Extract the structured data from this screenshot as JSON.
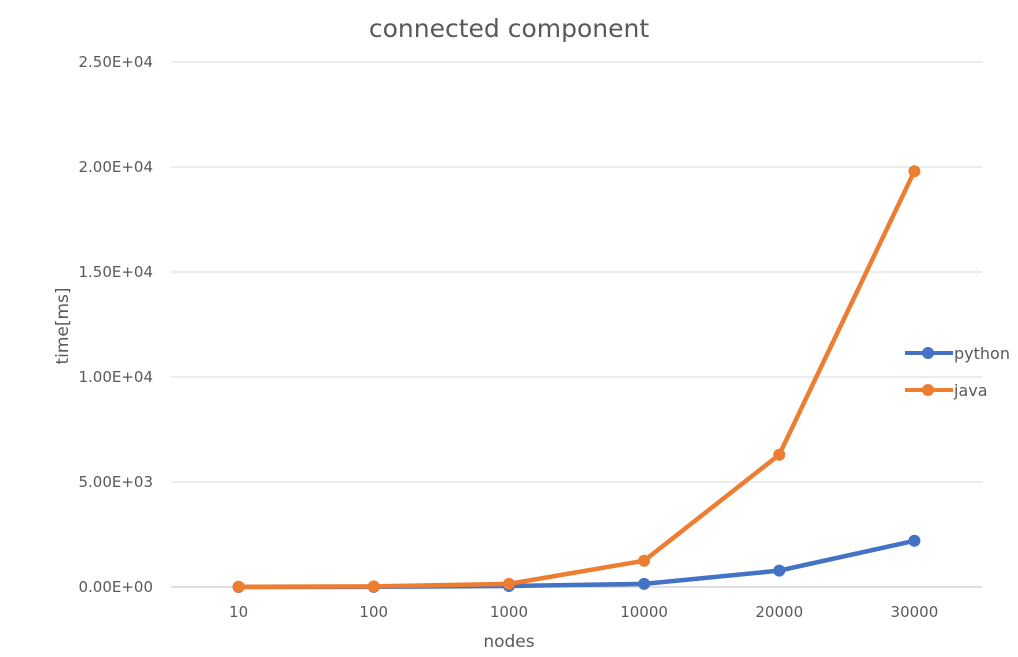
{
  "chart_data": {
    "type": "line",
    "title": "connected component",
    "xlabel": "nodes",
    "ylabel": "time[ms]",
    "categories": [
      "10",
      "100",
      "1000",
      "10000",
      "20000",
      "30000"
    ],
    "ylim": [
      0,
      25000
    ],
    "yticks": [
      "0.00E+00",
      "5.00E+03",
      "1.00E+04",
      "1.50E+04",
      "2.00E+04",
      "2.50E+04"
    ],
    "grid": true,
    "legend_position": "right",
    "series": [
      {
        "name": "python",
        "color": "#4472C4",
        "values": [
          2,
          8,
          45,
          150,
          780,
          2200
        ]
      },
      {
        "name": "java",
        "color": "#ED7D31",
        "values": [
          10,
          30,
          150,
          1250,
          6300,
          19800
        ]
      }
    ]
  }
}
